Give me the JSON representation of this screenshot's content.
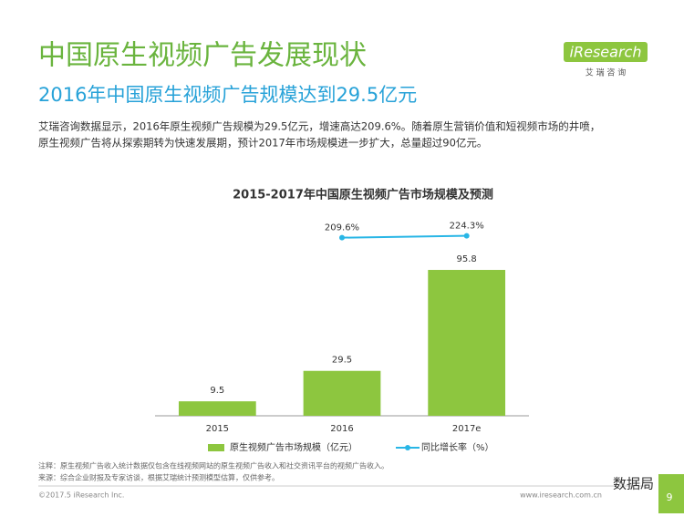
{
  "page": {
    "title": "中国原生视频广告发展现状",
    "subtitle": "2016年中国原生视频广告规模达到29.5亿元",
    "paragraph": [
      "艾瑞咨询数据显示，2016年原生视频广告规模为29.5亿元，增速高达209.6%。随着原生营销价值和短视频市场的井喷，",
      "原生视频广告将从探索期转为快速发展期，预计2017年市场规模进一步扩大，总量超过90亿元。"
    ],
    "notes": [
      "注释：原生视频广告收入统计数据仅包含在线视频网站的原生视频广告收入和社交资讯平台的视频广告收入。",
      "来源：综合企业财报及专家访谈，根据艾瑞统计预测模型估算，仅供参考。"
    ],
    "logo": "iResearch",
    "logo_sub": "艾 瑞 咨 询",
    "copyright": "©2017.5 iResearch Inc.",
    "website": "www.iresearch.com.cn",
    "watermark": "数据局",
    "page_number": "9"
  },
  "chart_data": {
    "type": "bar",
    "title": "2015-2017年中国原生视频广告市场规模及预测",
    "categories": [
      "2015",
      "2016",
      "2017e"
    ],
    "series": [
      {
        "name": "原生视频广告市场规模（亿元）",
        "color": "#8dc63f",
        "values": [
          9.5,
          29.5,
          95.8
        ]
      },
      {
        "name": "同比增长率（%）",
        "type": "line",
        "axis": "y2",
        "color": "#29b6e6",
        "values": [
          null,
          209.6,
          224.3
        ],
        "value_labels": [
          null,
          "209.6%",
          "224.3%"
        ]
      }
    ],
    "ylim": [
      0,
      100
    ],
    "y2lim": [
      0,
      250
    ],
    "legend": "bottom",
    "grid": false
  }
}
